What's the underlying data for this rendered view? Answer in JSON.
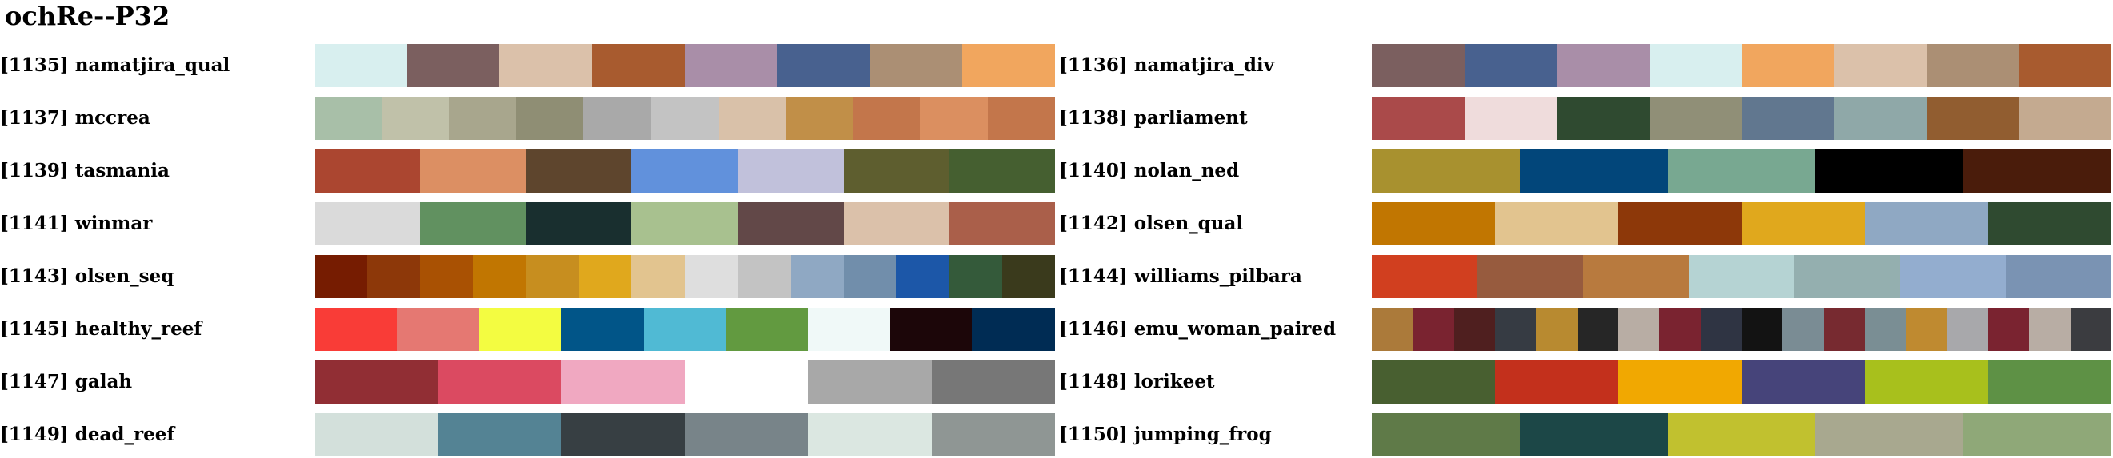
{
  "title": "ochRe--P32",
  "palettes": [
    {
      "label": "[1135] namatjira_qual",
      "colors": [
        "#d8efef",
        "#7b5f5f",
        "#dbc1aa",
        "#a85b2f",
        "#a98ea8",
        "#48618f",
        "#ab8f74",
        "#f1a65e"
      ]
    },
    {
      "label": "[1136] namatjira_div",
      "colors": [
        "#7b5f5f",
        "#48618f",
        "#a98ea8",
        "#d8efef",
        "#f1a65e",
        "#dbc1aa",
        "#ab8f74",
        "#a85b2f"
      ]
    },
    {
      "label": "[1137] mccrea",
      "colors": [
        "#a8bfa8",
        "#c0c1a9",
        "#a8a68d",
        "#8f8e74",
        "#a9a9a9",
        "#c3c3c3",
        "#d9c1a9",
        "#c18f48",
        "#c3764b",
        "#db8f60",
        "#c3764b"
      ]
    },
    {
      "label": "[1138] parliament",
      "colors": [
        "#aa4a4a",
        "#efdcdc",
        "#2f4a30",
        "#908f77",
        "#61778f",
        "#8fa8a8",
        "#915d30",
        "#c4aa90"
      ]
    },
    {
      "label": "[1139] tasmania",
      "colors": [
        "#ab4630",
        "#dc8f63",
        "#5e452d",
        "#6191dc",
        "#c1c1db",
        "#5e5e2f",
        "#455f30"
      ]
    },
    {
      "label": "[1140] nolan_ned",
      "colors": [
        "#a8912f",
        "#02467a",
        "#78a891",
        "#000000",
        "#4a1c0b"
      ]
    },
    {
      "label": "[1141] winmar",
      "colors": [
        "#dadada",
        "#619160",
        "#192f2f",
        "#a8c18f",
        "#624848",
        "#dbc1aa",
        "#aa5f4a"
      ]
    },
    {
      "label": "[1142] olsen_qual",
      "colors": [
        "#c17601",
        "#e2c48f",
        "#8d3809",
        "#e0a81d",
        "#8fa8c3",
        "#2f4a30"
      ]
    },
    {
      "label": "[1143] olsen_seq",
      "colors": [
        "#761c01",
        "#8d3809",
        "#a95103",
        "#c17601",
        "#c78e1f",
        "#e0a81d",
        "#e2c48f",
        "#dedede",
        "#c3c3c3",
        "#8fa8c3",
        "#718eab",
        "#1c57a8",
        "#345a3a",
        "#3a3a1c"
      ]
    },
    {
      "label": "[1144] williams_pilbara",
      "colors": [
        "#d13f1f",
        "#975b3e",
        "#b87a3e",
        "#b5d3d3",
        "#94afaf",
        "#93adcf",
        "#7a93b3"
      ]
    },
    {
      "label": "[1145] healthy_reef",
      "colors": [
        "#f93c37",
        "#e57872",
        "#f3fc41",
        "#015588",
        "#50bad4",
        "#629a40",
        "#f0f9f8",
        "#1c0609",
        "#002c54"
      ]
    },
    {
      "label": "[1146] emu_woman_paired",
      "colors": [
        "#ab7a3a",
        "#7a2330",
        "#4f1f1f",
        "#363b43",
        "#b88a30",
        "#262626",
        "#b8ada4",
        "#7a2330",
        "#2f3443",
        "#131313",
        "#7a8c94",
        "#772a30",
        "#7a8e94",
        "#bf8a30",
        "#a8a8ab",
        "#7a2330",
        "#b8ada4",
        "#3b3c40"
      ]
    },
    {
      "label": "[1147] galah",
      "colors": [
        "#912e34",
        "#db4a61",
        "#f0a8c1",
        "#ffffff",
        "#a8a8a8",
        "#777777"
      ]
    },
    {
      "label": "[1148] lorikeet",
      "colors": [
        "#485f30",
        "#c3301c",
        "#f1a801",
        "#46447a",
        "#a8c01c",
        "#5e9145"
      ]
    },
    {
      "label": "[1149] dead_reef",
      "colors": [
        "#d3e0db",
        "#548394",
        "#373f43",
        "#788489",
        "#dbe7e1",
        "#8f9694"
      ]
    },
    {
      "label": "[1150] jumping_frog",
      "colors": [
        "#5f7a48",
        "#1c4747",
        "#c1c12f",
        "#a8a88f",
        "#8fa878"
      ]
    }
  ]
}
